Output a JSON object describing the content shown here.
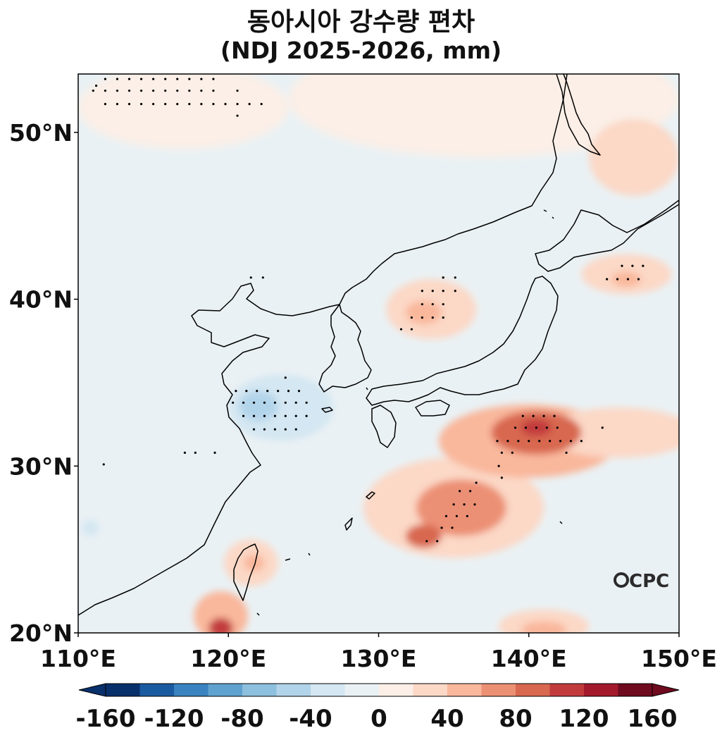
{
  "title": {
    "line1": "동아시아 강수량 편차",
    "line2": "(NDJ 2025-2026, mm)"
  },
  "map": {
    "lon_range": [
      110,
      150
    ],
    "lat_range": [
      20,
      53.5
    ],
    "lon_ticks": [
      {
        "value": 110,
        "label": "110°E"
      },
      {
        "value": 120,
        "label": "120°E"
      },
      {
        "value": 130,
        "label": "130°E"
      },
      {
        "value": 140,
        "label": "140°E"
      },
      {
        "value": 150,
        "label": "150°E"
      }
    ],
    "lat_ticks": [
      {
        "value": 20,
        "label": "20°N"
      },
      {
        "value": 30,
        "label": "30°N"
      },
      {
        "value": 40,
        "label": "40°N"
      },
      {
        "value": 50,
        "label": "50°N"
      }
    ],
    "background_color": "#eaf1f4",
    "coast_color": "#000000"
  },
  "anomaly_regions": [
    {
      "lon": 137,
      "lat": 52,
      "rx": 13,
      "ry": 3.5,
      "value": 10
    },
    {
      "lon": 117,
      "lat": 51.5,
      "rx": 7,
      "ry": 2.5,
      "value": 10
    },
    {
      "lon": 147,
      "lat": 48.5,
      "rx": 3,
      "ry": 2.3,
      "value": 30
    },
    {
      "lon": 119.5,
      "lat": 41,
      "rx": 4,
      "ry": 1.5,
      "value": -10
    },
    {
      "lon": 123.5,
      "lat": 33.5,
      "rx": 3.5,
      "ry": 2,
      "value": -30
    },
    {
      "lon": 122,
      "lat": 33.6,
      "rx": 1.3,
      "ry": 0.9,
      "value": -50
    },
    {
      "lon": 131.5,
      "lat": 27.2,
      "rx": 2.5,
      "ry": 1.3,
      "value": -30
    },
    {
      "lon": 113,
      "lat": 27,
      "rx": 4,
      "ry": 2.5,
      "value": -10
    },
    {
      "lon": 110.8,
      "lat": 26.3,
      "rx": 0.6,
      "ry": 0.5,
      "value": -30
    },
    {
      "lon": 135,
      "lat": 27.5,
      "rx": 6,
      "ry": 3,
      "value": 30
    },
    {
      "lon": 140,
      "lat": 31.5,
      "rx": 6,
      "ry": 2.2,
      "value": 50
    },
    {
      "lon": 146,
      "lat": 32,
      "rx": 5,
      "ry": 1.5,
      "value": 30
    },
    {
      "lon": 135.5,
      "lat": 27.5,
      "rx": 3,
      "ry": 1.7,
      "value": 70
    },
    {
      "lon": 140.5,
      "lat": 32,
      "rx": 3,
      "ry": 1.3,
      "value": 90
    },
    {
      "lon": 140.5,
      "lat": 32.3,
      "rx": 1,
      "ry": 0.5,
      "value": 110
    },
    {
      "lon": 133,
      "lat": 25.8,
      "rx": 1.2,
      "ry": 0.7,
      "value": 90
    },
    {
      "lon": 133.5,
      "lat": 39.4,
      "rx": 3,
      "ry": 1.8,
      "value": 30
    },
    {
      "lon": 133,
      "lat": 39.2,
      "rx": 1.2,
      "ry": 0.7,
      "value": 50
    },
    {
      "lon": 146.5,
      "lat": 41.5,
      "rx": 3,
      "ry": 1.2,
      "value": 30
    },
    {
      "lon": 146.5,
      "lat": 41.2,
      "rx": 1,
      "ry": 0.45,
      "value": 50
    },
    {
      "lon": 121.5,
      "lat": 24.2,
      "rx": 1.8,
      "ry": 1.4,
      "value": 30
    },
    {
      "lon": 121.7,
      "lat": 24.2,
      "rx": 0.7,
      "ry": 0.5,
      "value": 50
    },
    {
      "lon": 119.5,
      "lat": 21,
      "rx": 1.8,
      "ry": 1.5,
      "value": 50
    },
    {
      "lon": 119.5,
      "lat": 20.3,
      "rx": 0.8,
      "ry": 0.6,
      "value": 110
    },
    {
      "lon": 141,
      "lat": 20.4,
      "rx": 3,
      "ry": 1,
      "value": 30
    },
    {
      "lon": 141,
      "lat": 20.2,
      "rx": 1.5,
      "ry": 0.5,
      "value": 50
    }
  ],
  "significance_dots": [
    [
      111.2,
      52.8
    ],
    [
      111.8,
      53.2
    ],
    [
      112.6,
      53.2
    ],
    [
      113.4,
      53.2
    ],
    [
      114.2,
      53.2
    ],
    [
      115,
      53.2
    ],
    [
      115.8,
      53.2
    ],
    [
      116.6,
      53.2
    ],
    [
      117.4,
      53.2
    ],
    [
      118.2,
      53.2
    ],
    [
      119,
      53.2
    ],
    [
      111,
      52.5
    ],
    [
      111.8,
      52.5
    ],
    [
      112.6,
      52.5
    ],
    [
      113.4,
      52.5
    ],
    [
      114.2,
      52.5
    ],
    [
      115,
      52.5
    ],
    [
      115.8,
      52.5
    ],
    [
      116.6,
      52.5
    ],
    [
      117.4,
      52.5
    ],
    [
      118.2,
      52.5
    ],
    [
      119,
      52.5
    ],
    [
      120.6,
      52.5
    ],
    [
      111.8,
      51.7
    ],
    [
      112.6,
      51.7
    ],
    [
      113.4,
      51.7
    ],
    [
      114.2,
      51.7
    ],
    [
      115,
      51.7
    ],
    [
      115.8,
      51.7
    ],
    [
      116.6,
      51.7
    ],
    [
      117.4,
      51.7
    ],
    [
      118.2,
      51.7
    ],
    [
      119,
      51.7
    ],
    [
      119.8,
      51.7
    ],
    [
      120.6,
      51.7
    ],
    [
      121.4,
      51.7
    ],
    [
      122.2,
      51.7
    ],
    [
      120.6,
      51
    ],
    [
      121.5,
      41.3
    ],
    [
      122.3,
      41.3
    ],
    [
      131.5,
      38.2
    ],
    [
      132.2,
      38.2
    ],
    [
      132.2,
      38.9
    ],
    [
      132.9,
      38.9
    ],
    [
      133.6,
      38.9
    ],
    [
      134.3,
      38.9
    ],
    [
      132.9,
      39.7
    ],
    [
      133.6,
      39.7
    ],
    [
      134.3,
      39.7
    ],
    [
      132.9,
      40.5
    ],
    [
      133.6,
      40.5
    ],
    [
      134.3,
      40.5
    ],
    [
      135.1,
      40.5
    ],
    [
      134.3,
      41.3
    ],
    [
      135.1,
      41.3
    ],
    [
      134.3,
      41.3
    ],
    [
      145.2,
      41.2
    ],
    [
      145.9,
      41.2
    ],
    [
      146.6,
      41.2
    ],
    [
      147.3,
      41.2
    ],
    [
      146.2,
      42
    ],
    [
      146.9,
      42
    ],
    [
      147.6,
      42
    ],
    [
      120.5,
      34.5
    ],
    [
      121.2,
      34.5
    ],
    [
      121.9,
      34.5
    ],
    [
      122.6,
      34.5
    ],
    [
      123.3,
      34.5
    ],
    [
      124,
      34.5
    ],
    [
      124.7,
      34.5
    ],
    [
      120.3,
      33.8
    ],
    [
      121,
      33.8
    ],
    [
      121.7,
      33.8
    ],
    [
      122.4,
      33.8
    ],
    [
      123.1,
      33.8
    ],
    [
      123.8,
      33.8
    ],
    [
      124.5,
      33.8
    ],
    [
      125.2,
      33.8
    ],
    [
      121,
      33
    ],
    [
      121.7,
      33
    ],
    [
      122.4,
      33
    ],
    [
      123.1,
      33
    ],
    [
      123.8,
      33
    ],
    [
      124.5,
      33
    ],
    [
      125.2,
      33
    ],
    [
      121.7,
      32.2
    ],
    [
      122.4,
      32.2
    ],
    [
      123.1,
      32.2
    ],
    [
      123.8,
      32.2
    ],
    [
      124.5,
      32.2
    ],
    [
      123.8,
      35.3
    ],
    [
      119.1,
      30.8
    ],
    [
      117.1,
      30.8
    ],
    [
      117.8,
      30.8
    ],
    [
      111.7,
      30.1
    ],
    [
      139.6,
      33
    ],
    [
      140.3,
      33
    ],
    [
      141,
      33
    ],
    [
      141.7,
      33
    ],
    [
      139.1,
      32.3
    ],
    [
      139.8,
      32.3
    ],
    [
      140.5,
      32.3
    ],
    [
      141.2,
      32.3
    ],
    [
      141.9,
      32.3
    ],
    [
      144.9,
      32.3
    ],
    [
      137.9,
      31.5
    ],
    [
      138.6,
      31.5
    ],
    [
      139.3,
      31.5
    ],
    [
      140,
      31.5
    ],
    [
      140.7,
      31.5
    ],
    [
      141.4,
      31.5
    ],
    [
      142.1,
      31.5
    ],
    [
      142.8,
      31.5
    ],
    [
      143.5,
      31.5
    ],
    [
      138.2,
      30.8
    ],
    [
      138.9,
      30.8
    ],
    [
      142.5,
      30.8
    ],
    [
      138,
      30
    ],
    [
      138.2,
      29.3
    ],
    [
      136.5,
      29
    ],
    [
      135.4,
      28.5
    ],
    [
      136.1,
      28.5
    ],
    [
      135,
      27.7
    ],
    [
      135.7,
      27.7
    ],
    [
      136.4,
      27.7
    ],
    [
      134.5,
      27
    ],
    [
      135.2,
      27
    ],
    [
      135.9,
      27
    ],
    [
      134.2,
      26.3
    ],
    [
      134.9,
      26.3
    ],
    [
      133.2,
      25.5
    ],
    [
      133.9,
      25.5
    ]
  ],
  "colorbar": {
    "colors": [
      "#08306b",
      "#1a5aa0",
      "#3a83c0",
      "#5fa2d0",
      "#8cc0de",
      "#b2d4ea",
      "#d4e7f2",
      "#eaf1f4",
      "#fbefe7",
      "#fcd8c6",
      "#f9b79b",
      "#ec9074",
      "#d86850",
      "#c23b3c",
      "#a31a2c",
      "#6f0a1f"
    ],
    "tick_values": [
      -160,
      -120,
      -80,
      -40,
      0,
      40,
      80,
      120,
      160
    ],
    "tick_labels": [
      "-160",
      "-120",
      "-80",
      "-40",
      "0",
      "40",
      "80",
      "120",
      "160"
    ],
    "min": -160,
    "max": 160,
    "step": 20
  },
  "logo": {
    "text": "CPC"
  }
}
